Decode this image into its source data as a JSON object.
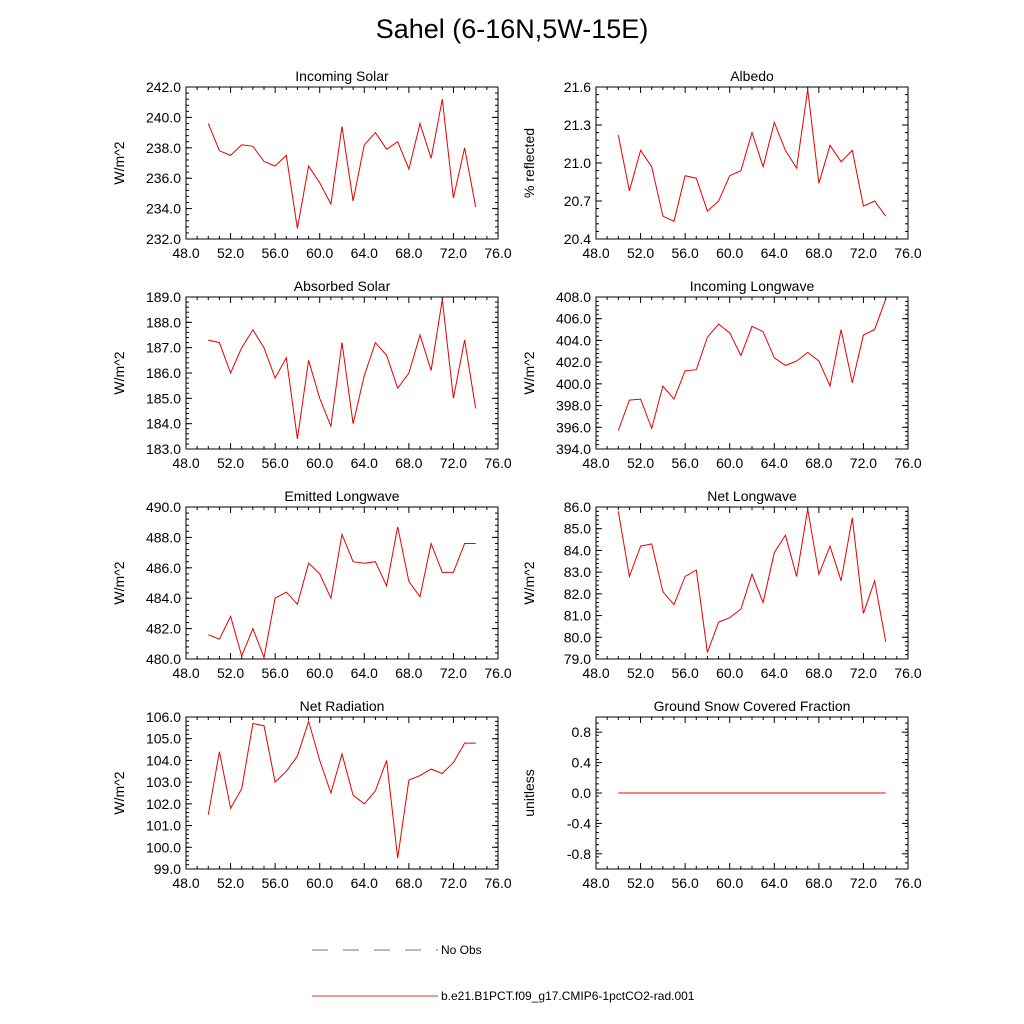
{
  "title": "Sahel (6-16N,5W-15E)",
  "legend": {
    "items": [
      {
        "label": "No Obs",
        "color": "#6a6ad0",
        "style": "dashed"
      },
      {
        "label": "b.e21.B1PCT.f09_g17.CMIP6-1pctCO2-rad.001",
        "color": "#e03030",
        "style": "solid"
      }
    ]
  },
  "colors": {
    "series": "#e60000",
    "axes": "#000000"
  },
  "chart_data": [
    {
      "type": "line",
      "title": "Incoming Solar",
      "ylabel": "W/m^2",
      "xlim": [
        48,
        76
      ],
      "ylim": [
        232,
        242
      ],
      "xticks": [
        "48.0",
        "52.0",
        "56.0",
        "60.0",
        "64.0",
        "68.0",
        "72.0",
        "76.0"
      ],
      "yticks": [
        "232.0",
        "234.0",
        "236.0",
        "238.0",
        "240.0",
        "242.0"
      ],
      "x": [
        50,
        51,
        52,
        53,
        54,
        55,
        56,
        57,
        58,
        59,
        60,
        61,
        62,
        63,
        64,
        65,
        66,
        67,
        68,
        69,
        70,
        71,
        72,
        73,
        74
      ],
      "series": [
        {
          "values": [
            239.6,
            237.8,
            237.5,
            238.2,
            238.1,
            237.1,
            236.8,
            237.5,
            232.7,
            236.8,
            235.7,
            234.3,
            239.4,
            234.5,
            238.2,
            239.0,
            237.9,
            238.4,
            236.6,
            239.6,
            237.3,
            241.2,
            234.7,
            238.0,
            234.1
          ]
        }
      ]
    },
    {
      "type": "line",
      "title": "Albedo",
      "ylabel": "% reflected",
      "xlim": [
        48,
        76
      ],
      "ylim": [
        20.4,
        21.6
      ],
      "xticks": [
        "48.0",
        "52.0",
        "56.0",
        "60.0",
        "64.0",
        "68.0",
        "72.0",
        "76.0"
      ],
      "yticks": [
        "20.4",
        "20.7",
        "21.0",
        "21.3",
        "21.6"
      ],
      "x": [
        50,
        51,
        52,
        53,
        54,
        55,
        56,
        57,
        58,
        59,
        60,
        61,
        62,
        63,
        64,
        65,
        66,
        67,
        68,
        69,
        70,
        71,
        72,
        73,
        74
      ],
      "series": [
        {
          "values": [
            21.22,
            20.78,
            21.1,
            20.97,
            20.58,
            20.54,
            20.9,
            20.88,
            20.62,
            20.7,
            20.9,
            20.94,
            21.24,
            20.97,
            21.32,
            21.1,
            20.96,
            21.58,
            20.84,
            21.14,
            21.01,
            21.1,
            20.66,
            20.7,
            20.58
          ]
        }
      ]
    },
    {
      "type": "line",
      "title": "Absorbed Solar",
      "ylabel": "W/m^2",
      "xlim": [
        48,
        76
      ],
      "ylim": [
        183,
        189
      ],
      "xticks": [
        "48.0",
        "52.0",
        "56.0",
        "60.0",
        "64.0",
        "68.0",
        "72.0",
        "76.0"
      ],
      "yticks": [
        "183.0",
        "184.0",
        "185.0",
        "186.0",
        "187.0",
        "188.0",
        "189.0"
      ],
      "x": [
        50,
        51,
        52,
        53,
        54,
        55,
        56,
        57,
        58,
        59,
        60,
        61,
        62,
        63,
        64,
        65,
        66,
        67,
        68,
        69,
        70,
        71,
        72,
        73,
        74
      ],
      "series": [
        {
          "values": [
            187.3,
            187.2,
            186.0,
            187.0,
            187.7,
            187.0,
            185.8,
            186.6,
            183.4,
            186.5,
            185.0,
            183.9,
            187.2,
            184.0,
            185.9,
            187.2,
            186.7,
            185.4,
            186.0,
            187.5,
            186.1,
            188.9,
            185.0,
            187.3,
            184.6
          ]
        }
      ]
    },
    {
      "type": "line",
      "title": "Incoming Longwave",
      "ylabel": "W/m^2",
      "xlim": [
        48,
        76
      ],
      "ylim": [
        394,
        408
      ],
      "xticks": [
        "48.0",
        "52.0",
        "56.0",
        "60.0",
        "64.0",
        "68.0",
        "72.0",
        "76.0"
      ],
      "yticks": [
        "394.0",
        "396.0",
        "398.0",
        "400.0",
        "402.0",
        "404.0",
        "406.0",
        "408.0"
      ],
      "x": [
        50,
        51,
        52,
        53,
        54,
        55,
        56,
        57,
        58,
        59,
        60,
        61,
        62,
        63,
        64,
        65,
        66,
        67,
        68,
        69,
        70,
        71,
        72,
        73,
        74
      ],
      "series": [
        {
          "values": [
            395.7,
            398.5,
            398.6,
            395.9,
            399.8,
            398.6,
            401.2,
            401.3,
            404.3,
            405.5,
            404.7,
            402.6,
            405.3,
            404.8,
            402.4,
            401.7,
            402.1,
            402.9,
            402.1,
            399.8,
            405.0,
            400.1,
            404.5,
            405.0,
            407.8
          ]
        }
      ]
    },
    {
      "type": "line",
      "title": "Emitted Longwave",
      "ylabel": "W/m^2",
      "xlim": [
        48,
        76
      ],
      "ylim": [
        480,
        490
      ],
      "xticks": [
        "48.0",
        "52.0",
        "56.0",
        "60.0",
        "64.0",
        "68.0",
        "72.0",
        "76.0"
      ],
      "yticks": [
        "480.0",
        "482.0",
        "484.0",
        "486.0",
        "488.0",
        "490.0"
      ],
      "x": [
        50,
        51,
        52,
        53,
        54,
        55,
        56,
        57,
        58,
        59,
        60,
        61,
        62,
        63,
        64,
        65,
        66,
        67,
        68,
        69,
        70,
        71,
        72,
        73,
        74
      ],
      "series": [
        {
          "values": [
            481.6,
            481.3,
            482.8,
            480.2,
            482.0,
            480.1,
            484.0,
            484.4,
            483.6,
            486.3,
            485.6,
            484.0,
            488.2,
            486.4,
            486.3,
            486.4,
            484.8,
            488.7,
            485.1,
            484.1,
            487.6,
            485.7,
            485.7,
            487.6,
            487.6
          ]
        }
      ]
    },
    {
      "type": "line",
      "title": "Net Longwave",
      "ylabel": "W/m^2",
      "xlim": [
        48,
        76
      ],
      "ylim": [
        79,
        86
      ],
      "xticks": [
        "48.0",
        "52.0",
        "56.0",
        "60.0",
        "64.0",
        "68.0",
        "72.0",
        "76.0"
      ],
      "yticks": [
        "79.0",
        "80.0",
        "81.0",
        "82.0",
        "83.0",
        "84.0",
        "85.0",
        "86.0"
      ],
      "x": [
        50,
        51,
        52,
        53,
        54,
        55,
        56,
        57,
        58,
        59,
        60,
        61,
        62,
        63,
        64,
        65,
        66,
        67,
        68,
        69,
        70,
        71,
        72,
        73,
        74
      ],
      "series": [
        {
          "values": [
            85.8,
            82.8,
            84.2,
            84.3,
            82.1,
            81.5,
            82.8,
            83.1,
            79.3,
            80.7,
            80.9,
            81.3,
            82.9,
            81.6,
            83.9,
            84.7,
            82.8,
            85.9,
            82.9,
            84.2,
            82.6,
            85.5,
            81.1,
            82.6,
            79.8
          ]
        }
      ]
    },
    {
      "type": "line",
      "title": "Net Radiation",
      "ylabel": "W/m^2",
      "xlim": [
        48,
        76
      ],
      "ylim": [
        99,
        106
      ],
      "xticks": [
        "48.0",
        "52.0",
        "56.0",
        "60.0",
        "64.0",
        "68.0",
        "72.0",
        "76.0"
      ],
      "yticks": [
        "99.0",
        "100.0",
        "101.0",
        "102.0",
        "103.0",
        "104.0",
        "105.0",
        "106.0"
      ],
      "x": [
        50,
        51,
        52,
        53,
        54,
        55,
        56,
        57,
        58,
        59,
        60,
        61,
        62,
        63,
        64,
        65,
        66,
        67,
        68,
        69,
        70,
        71,
        72,
        73,
        74
      ],
      "series": [
        {
          "values": [
            101.5,
            104.4,
            101.8,
            102.7,
            105.7,
            105.6,
            103.0,
            103.5,
            104.2,
            105.8,
            104.0,
            102.5,
            104.3,
            102.4,
            102.0,
            102.6,
            104.0,
            99.5,
            103.1,
            103.3,
            103.6,
            103.4,
            103.9,
            104.8,
            104.8
          ]
        }
      ]
    },
    {
      "type": "line",
      "title": "Ground Snow Covered Fraction",
      "ylabel": "unitless",
      "xlim": [
        48,
        76
      ],
      "ylim": [
        -1.0,
        1.0
      ],
      "xticks": [
        "48.0",
        "52.0",
        "56.0",
        "60.0",
        "64.0",
        "68.0",
        "72.0",
        "76.0"
      ],
      "yticks": [
        "-0.8",
        "-0.4",
        "0.0",
        "0.4",
        "0.8"
      ],
      "ytick_values": [
        -0.8,
        -0.4,
        0.0,
        0.4,
        0.8
      ],
      "x": [
        50,
        51,
        52,
        53,
        54,
        55,
        56,
        57,
        58,
        59,
        60,
        61,
        62,
        63,
        64,
        65,
        66,
        67,
        68,
        69,
        70,
        71,
        72,
        73,
        74
      ],
      "series": [
        {
          "values": [
            0,
            0,
            0,
            0,
            0,
            0,
            0,
            0,
            0,
            0,
            0,
            0,
            0,
            0,
            0,
            0,
            0,
            0,
            0,
            0,
            0,
            0,
            0,
            0,
            0
          ]
        }
      ]
    }
  ]
}
